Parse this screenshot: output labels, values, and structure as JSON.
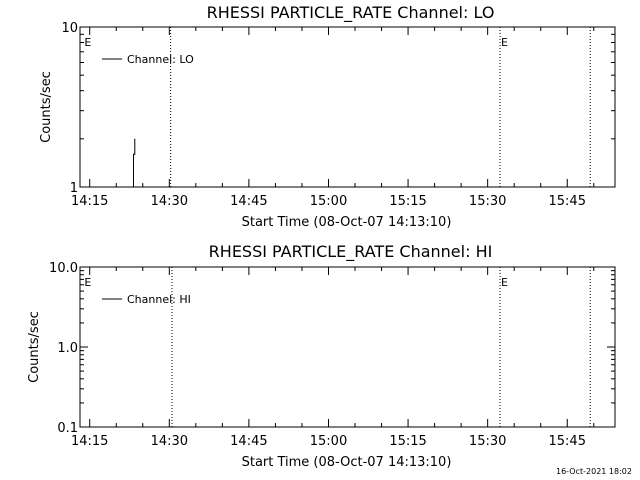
{
  "footer": {
    "timestamp": "16-Oct-2021 18:02"
  },
  "chart_data": [
    {
      "type": "line",
      "title": "RHESSI PARTICLE_RATE Channel: LO",
      "xlabel": "Start Time (08-Oct-07 14:13:10)",
      "ylabel": "Counts/sec",
      "x_ticks": [
        "14:15",
        "14:30",
        "14:45",
        "15:00",
        "15:15",
        "15:30",
        "15:45"
      ],
      "y_scale": "log",
      "y_ticks": [
        "1",
        "10"
      ],
      "ylim": [
        1,
        10
      ],
      "xlim": [
        "14:13:10",
        "15:54:00"
      ],
      "legend": {
        "position": "top-left",
        "entries": [
          "Channel: LO"
        ]
      },
      "event_markers": [
        {
          "time": "14:14:00",
          "label": "E",
          "line": false
        },
        {
          "time": "14:30:15",
          "label": "",
          "line": true
        },
        {
          "time": "15:32:20",
          "label": "E",
          "line": true
        },
        {
          "time": "15:49:20",
          "label": "",
          "line": true
        }
      ],
      "series": [
        {
          "name": "Channel: LO",
          "points": [
            [
              "14:23:15",
              1
            ],
            [
              "14:23:15",
              1.6
            ],
            [
              "14:23:30",
              1.6
            ],
            [
              "14:23:30",
              2
            ]
          ]
        }
      ]
    },
    {
      "type": "line",
      "title": "RHESSI PARTICLE_RATE Channel: HI",
      "xlabel": "Start Time (08-Oct-07 14:13:10)",
      "ylabel": "Counts/sec",
      "x_ticks": [
        "14:15",
        "14:30",
        "14:45",
        "15:00",
        "15:15",
        "15:30",
        "15:45"
      ],
      "y_scale": "log",
      "y_ticks": [
        "0.1",
        "1.0",
        "10.0"
      ],
      "ylim": [
        0.1,
        10
      ],
      "xlim": [
        "14:13:10",
        "15:54:00"
      ],
      "legend": {
        "position": "top-left",
        "entries": [
          "Channel: HI"
        ]
      },
      "event_markers": [
        {
          "time": "14:14:00",
          "label": "E",
          "line": false
        },
        {
          "time": "14:30:30",
          "label": "",
          "line": true
        },
        {
          "time": "15:32:20",
          "label": "E",
          "line": true
        },
        {
          "time": "15:49:20",
          "label": "",
          "line": true
        }
      ],
      "series": [
        {
          "name": "Channel: HI",
          "points": []
        }
      ]
    }
  ]
}
